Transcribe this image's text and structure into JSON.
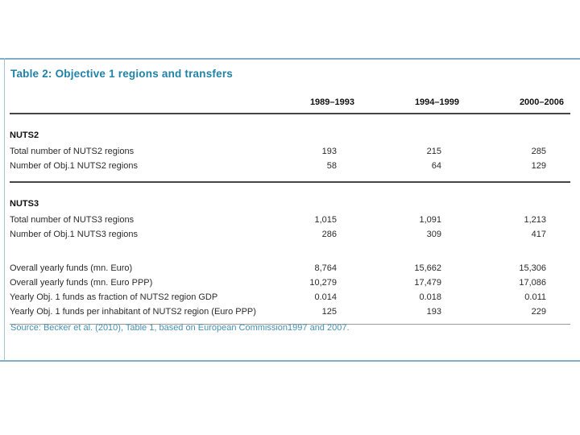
{
  "slide": {
    "title": "Table 2: Objective 1 regions and transfers",
    "source": "Source: Becker et al. (2010), Table 1, based on European Commission1997 and 2007.",
    "table": {
      "column_headers": [
        "1989–1993",
        "1994–1999",
        "2000–2006"
      ],
      "rows": [
        {
          "type": "section",
          "label": "NUTS2"
        },
        {
          "type": "data",
          "label": "Total number of NUTS2 regions",
          "values": [
            "193",
            "215",
            "285"
          ]
        },
        {
          "type": "data",
          "label": "Number of Obj.1 NUTS2 regions",
          "values": [
            "58",
            "64",
            "129"
          ]
        },
        {
          "type": "rule"
        },
        {
          "type": "section",
          "label": "NUTS3"
        },
        {
          "type": "data",
          "label": "Total number of NUTS3 regions",
          "values": [
            "1,015",
            "1,091",
            "1,213"
          ]
        },
        {
          "type": "data",
          "label": "Number of Obj.1 NUTS3 regions",
          "values": [
            "286",
            "309",
            "417"
          ]
        },
        {
          "type": "spacer"
        },
        {
          "type": "data",
          "label": "Overall yearly funds (mn. Euro)",
          "values": [
            "8,764",
            "15,662",
            "15,306"
          ]
        },
        {
          "type": "data",
          "label": "Overall yearly funds (mn. Euro PPP)",
          "values": [
            "10,279",
            "17,479",
            "17,086"
          ]
        },
        {
          "type": "data",
          "label": "Yearly Obj. 1 funds as fraction of NUTS2 region GDP",
          "values": [
            "0.014",
            "0.018",
            "0.011"
          ]
        },
        {
          "type": "data",
          "label": "Yearly Obj. 1 funds per inhabitant of NUTS2 region (Euro PPP)",
          "values": [
            "125",
            "193",
            "229"
          ]
        },
        {
          "type": "bottom-rule"
        }
      ]
    },
    "colors": {
      "accent_teal": "#1f82a6",
      "source_text": "#4691b3",
      "border_teal": "#7fafc4",
      "rule_dark": "#454545",
      "rule_light": "#9a9a9a"
    }
  }
}
